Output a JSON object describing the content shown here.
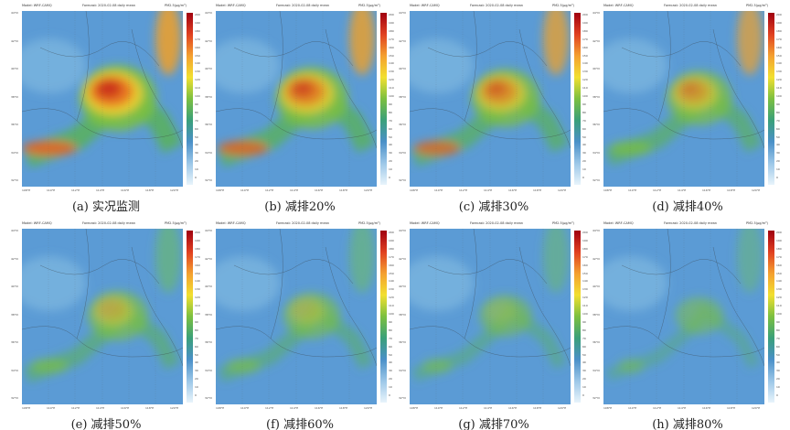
{
  "header": {
    "model": "Model: WRF-CAMQ",
    "forecast": "Forecast: 2020-02-08 daily mean",
    "pollutant": "PM2.5(μg/m³)"
  },
  "colorbar": {
    "ticks": [
      "200",
      "190",
      "180",
      "170",
      "160",
      "150",
      "140",
      "130",
      "120",
      "110",
      "100",
      "90",
      "80",
      "70",
      "60",
      "50",
      "40",
      "30",
      "20",
      "10",
      "0"
    ]
  },
  "lat_labels": [
    "44°N",
    "42°N",
    "40°N",
    "38°N",
    "36°N",
    "34°N",
    "32°N"
  ],
  "lon_labels": [
    "108°E",
    "110°E",
    "112°E",
    "114°E",
    "116°E",
    "118°E",
    "120°E"
  ],
  "panels": [
    {
      "caption": "(a) 实况监测",
      "level": 1.0
    },
    {
      "caption": "(b) 减排20%",
      "level": 0.88
    },
    {
      "caption": "(c) 减排30%",
      "level": 0.78
    },
    {
      "caption": "(d) 减排40%",
      "level": 0.68
    },
    {
      "caption": "(e) 减排50%",
      "level": 0.55
    },
    {
      "caption": "(f) 减排60%",
      "level": 0.45
    },
    {
      "caption": "(g) 减排70%",
      "level": 0.33
    },
    {
      "caption": "(h) 减排80%",
      "level": 0.22
    }
  ]
}
